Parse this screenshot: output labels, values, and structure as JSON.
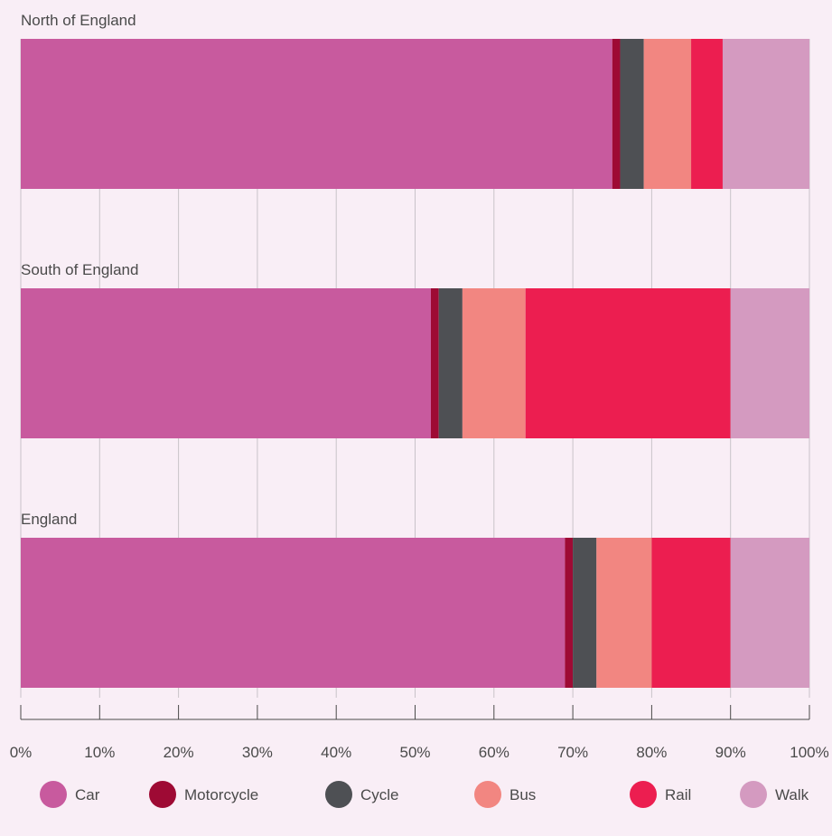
{
  "chart_data": {
    "type": "bar",
    "orientation": "horizontal",
    "stacked": true,
    "categories": [
      "North of England",
      "South of England",
      "England"
    ],
    "series": [
      {
        "name": "Car",
        "values": [
          75,
          52,
          69
        ],
        "color": "#c85a9e"
      },
      {
        "name": "Motorcycle",
        "values": [
          1,
          1,
          1
        ],
        "color": "#9e0a34"
      },
      {
        "name": "Cycle",
        "values": [
          3,
          3,
          3
        ],
        "color": "#4e5054"
      },
      {
        "name": "Bus",
        "values": [
          6,
          8,
          7
        ],
        "color": "#f28681"
      },
      {
        "name": "Rail",
        "values": [
          4,
          26,
          10
        ],
        "color": "#ec1e50"
      },
      {
        "name": "Walk",
        "values": [
          11,
          10,
          10
        ],
        "color": "#d49ac0"
      }
    ],
    "x_ticks": [
      "0%",
      "10%",
      "20%",
      "30%",
      "40%",
      "50%",
      "60%",
      "70%",
      "80%",
      "90%",
      "100%"
    ],
    "xlim": [
      0,
      100
    ],
    "grid": true,
    "legend_position": "bottom"
  }
}
